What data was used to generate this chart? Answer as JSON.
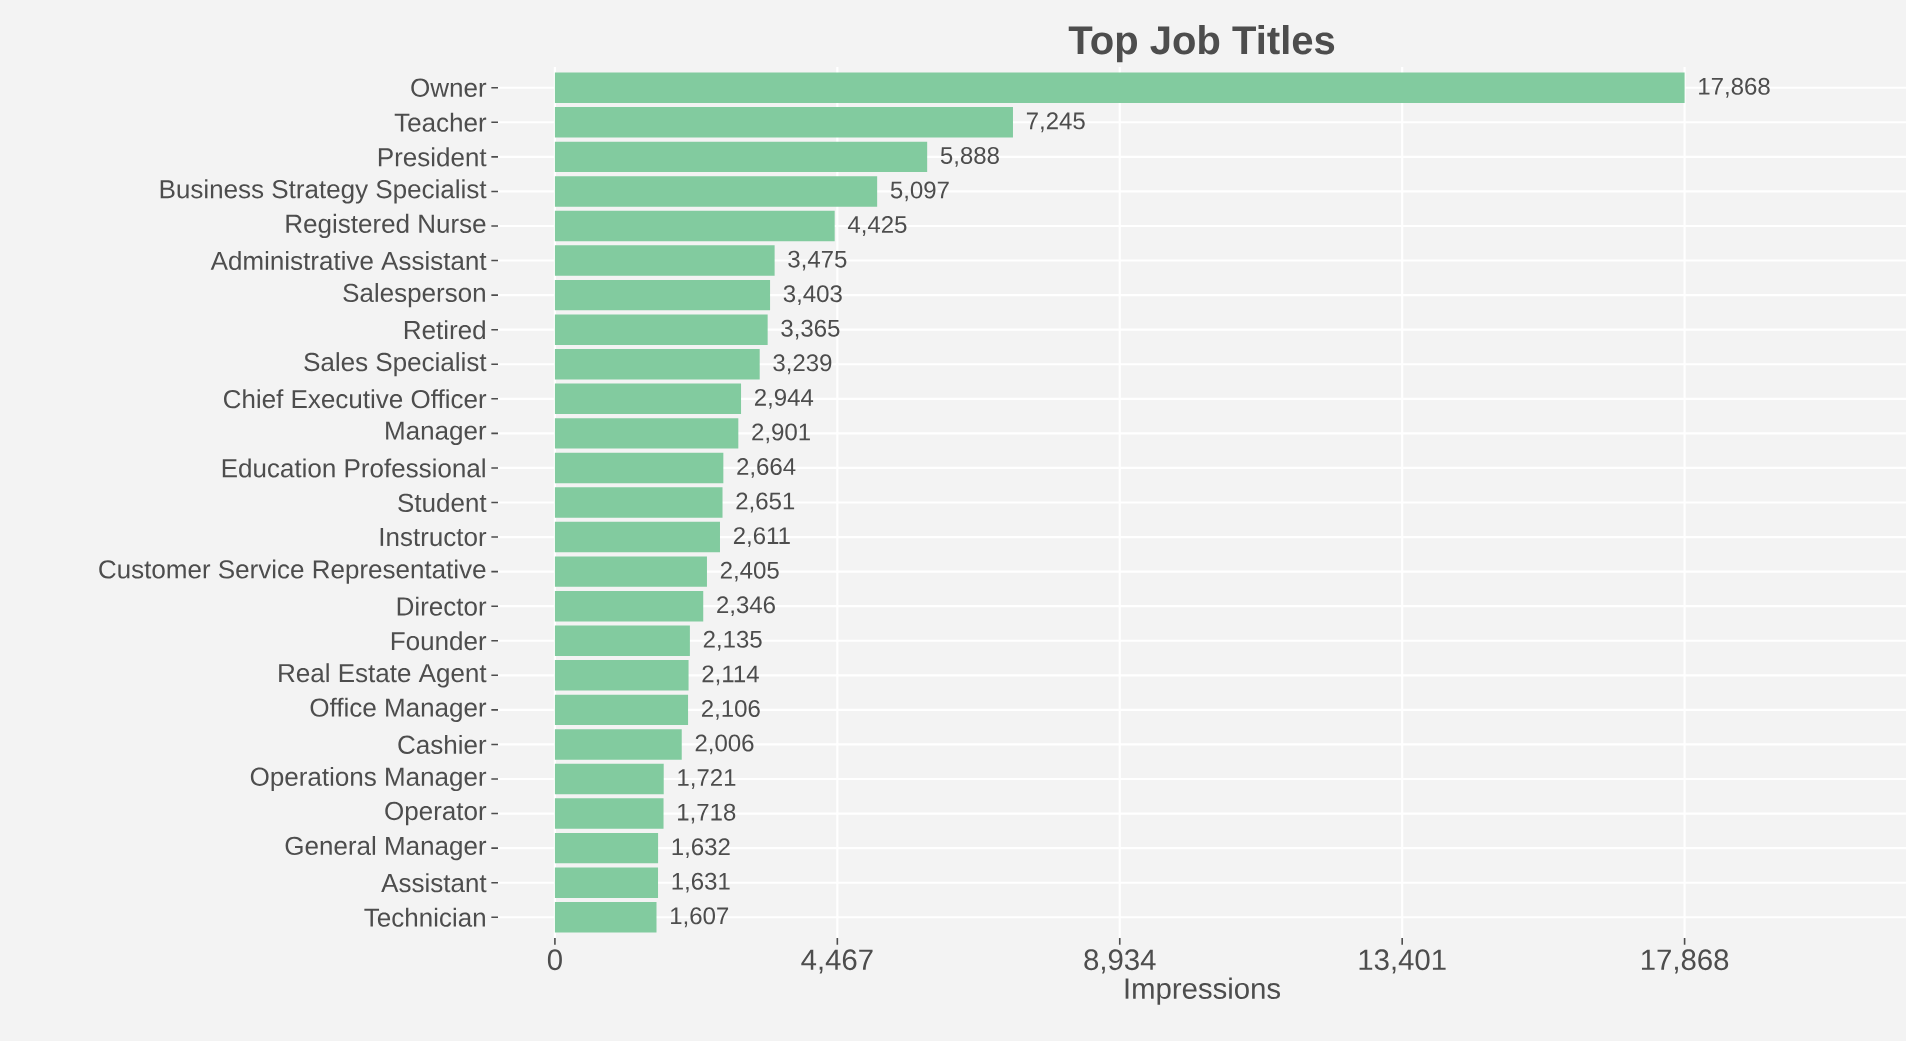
{
  "chart_data": {
    "type": "bar",
    "orientation": "horizontal",
    "title": "Top Job Titles",
    "xlabel": "Impressions",
    "categories": [
      "Owner",
      "Teacher",
      "President",
      "Business Strategy Specialist",
      "Registered Nurse",
      "Administrative Assistant",
      "Salesperson",
      "Retired",
      "Sales Specialist",
      "Chief Executive Officer",
      "Manager",
      "Education Professional",
      "Student",
      "Instructor",
      "Customer Service Representative",
      "Director",
      "Founder",
      "Real Estate Agent",
      "Office Manager",
      "Cashier",
      "Operations Manager",
      "Operator",
      "General Manager",
      "Assistant",
      "Technician"
    ],
    "values": [
      17868,
      7245,
      5888,
      5097,
      4425,
      3475,
      3403,
      3365,
      3239,
      2944,
      2901,
      2664,
      2651,
      2611,
      2405,
      2346,
      2135,
      2114,
      2106,
      2006,
      1721,
      1718,
      1632,
      1631,
      1607
    ],
    "value_labels": [
      "17,868",
      "7,245",
      "5,888",
      "5,097",
      "4,425",
      "3,475",
      "3,403",
      "3,365",
      "3,239",
      "2,944",
      "2,901",
      "2,664",
      "2,651",
      "2,611",
      "2,405",
      "2,346",
      "2,135",
      "2,114",
      "2,106",
      "2,006",
      "1,721",
      "1,718",
      "1,632",
      "1,631",
      "1,607"
    ],
    "color": "#82cb9f",
    "xlim": [
      -900,
      21370
    ],
    "xticks": [
      0,
      {
        "value": 4467,
        "label": "4,467"
      },
      {
        "value": 8934,
        "label": "8,934"
      },
      {
        "value": 13401,
        "label": "13,401"
      },
      {
        "value": 17868,
        "label": "17,868"
      }
    ],
    "grid": true
  }
}
